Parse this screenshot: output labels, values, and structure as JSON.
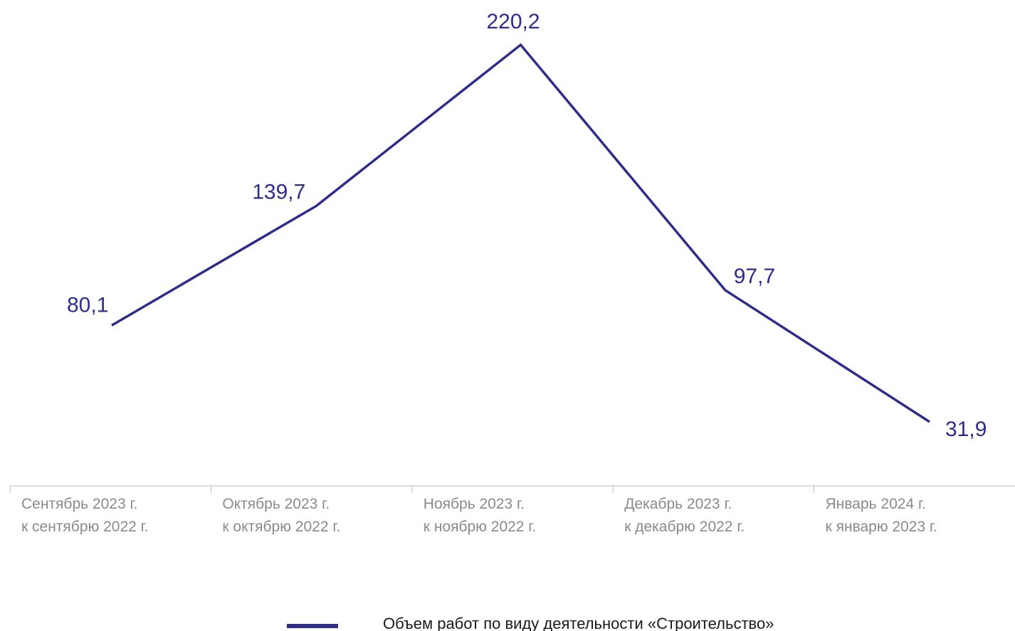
{
  "chart_data": {
    "type": "line",
    "categories": [
      [
        "Сентябрь 2023 г.",
        "к сентябрю 2022 г."
      ],
      [
        "Октябрь 2023 г.",
        "к октябрю 2022 г."
      ],
      [
        "Ноябрь 2023 г.",
        "к ноябрю 2022 г."
      ],
      [
        "Декабрь 2023 г.",
        "к декабрю 2022 г."
      ],
      [
        "Январь 2024 г.",
        "к январю 2023 г."
      ]
    ],
    "series": [
      {
        "name": "Объем работ по виду деятельности «Строительство»",
        "values": [
          80.1,
          139.7,
          220.2,
          97.7,
          31.9
        ],
        "labels": [
          "80,1",
          "139,7",
          "220,2",
          "97,7",
          "31,9"
        ],
        "color": "#2e2d8c"
      }
    ],
    "title": "",
    "xlabel": "",
    "ylabel": "",
    "ylim": [
      0,
      240
    ],
    "grid": false,
    "legend_position": "bottom"
  }
}
